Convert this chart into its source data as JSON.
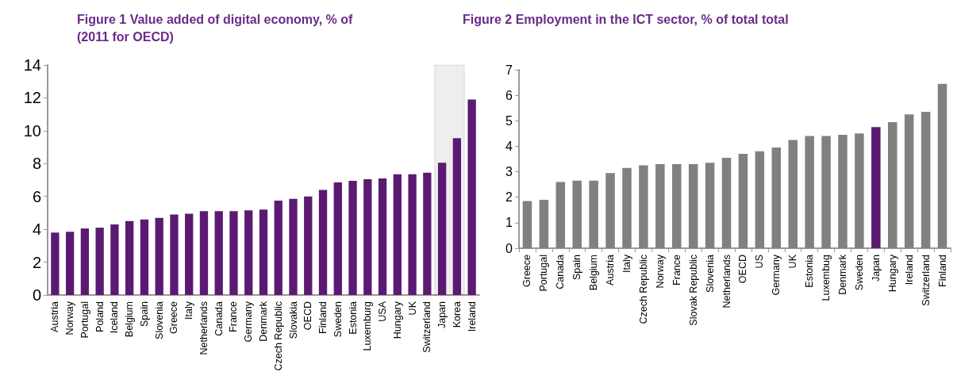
{
  "chart_data": [
    {
      "type": "bar",
      "title": "Figure 1 Value added of digital economy, % of\n(2011 for OECD)",
      "categories": [
        "Austria",
        "Norway",
        "Portugal",
        "Poland",
        "Iceland",
        "Belgium",
        "Spain",
        "Slovenia",
        "Greece",
        "Italy",
        "Netherlands",
        "Canada",
        "France",
        "Germany",
        "Denmark",
        "Czech Republic",
        "Slovakia",
        "OECD",
        "Finland",
        "Sweden",
        "Estonia",
        "Luxemburg",
        "USA",
        "Hungary",
        "UK",
        "Switzerland",
        "Japan",
        "Korea",
        "Ireland"
      ],
      "values": [
        3.8,
        3.85,
        4.05,
        4.1,
        4.3,
        4.5,
        4.6,
        4.7,
        4.9,
        4.95,
        5.1,
        5.1,
        5.1,
        5.15,
        5.2,
        5.75,
        5.85,
        6.0,
        6.4,
        6.85,
        6.95,
        7.05,
        7.1,
        7.35,
        7.35,
        7.45,
        8.05,
        9.55,
        11.9
      ],
      "color": "#5b1a72",
      "ylim": [
        0,
        14
      ],
      "yticks": [
        0,
        2,
        4,
        6,
        8,
        10,
        12,
        14
      ],
      "grid": false,
      "bands": [
        {
          "axis": "x",
          "from": "Japan",
          "to": "Korea",
          "color": "#222222"
        }
      ]
    },
    {
      "type": "bar",
      "title": "Figure 2 Employment in the ICT sector, % of total total",
      "categories": [
        "Greece",
        "Portugal",
        "Canada",
        "Spain",
        "Belgium",
        "Austria",
        "Italy",
        "Czech Republic",
        "Norway",
        "France",
        "Slovak Republic",
        "Slovenia",
        "Netherlands",
        "OECD",
        "US",
        "Germany",
        "UK",
        "Estonia",
        "Luxembug",
        "Denmark",
        "Sweden",
        "Japan",
        "Hungary",
        "Ireland",
        "Switzerland",
        "Finland"
      ],
      "values": [
        1.85,
        1.9,
        2.6,
        2.65,
        2.65,
        2.95,
        3.15,
        3.25,
        3.3,
        3.3,
        3.3,
        3.35,
        3.55,
        3.7,
        3.8,
        3.95,
        4.25,
        4.4,
        4.4,
        4.45,
        4.5,
        4.75,
        4.95,
        5.25,
        5.35,
        6.45
      ],
      "colors": [
        "#808080",
        "#808080",
        "#808080",
        "#808080",
        "#808080",
        "#808080",
        "#808080",
        "#808080",
        "#808080",
        "#808080",
        "#808080",
        "#808080",
        "#808080",
        "#808080",
        "#808080",
        "#808080",
        "#808080",
        "#808080",
        "#808080",
        "#808080",
        "#808080",
        "#5b1a72",
        "#808080",
        "#808080",
        "#808080",
        "#808080"
      ],
      "ylim": [
        0,
        7
      ],
      "yticks": [
        0,
        1,
        2,
        3,
        4,
        5,
        6,
        7
      ],
      "grid": false
    }
  ]
}
